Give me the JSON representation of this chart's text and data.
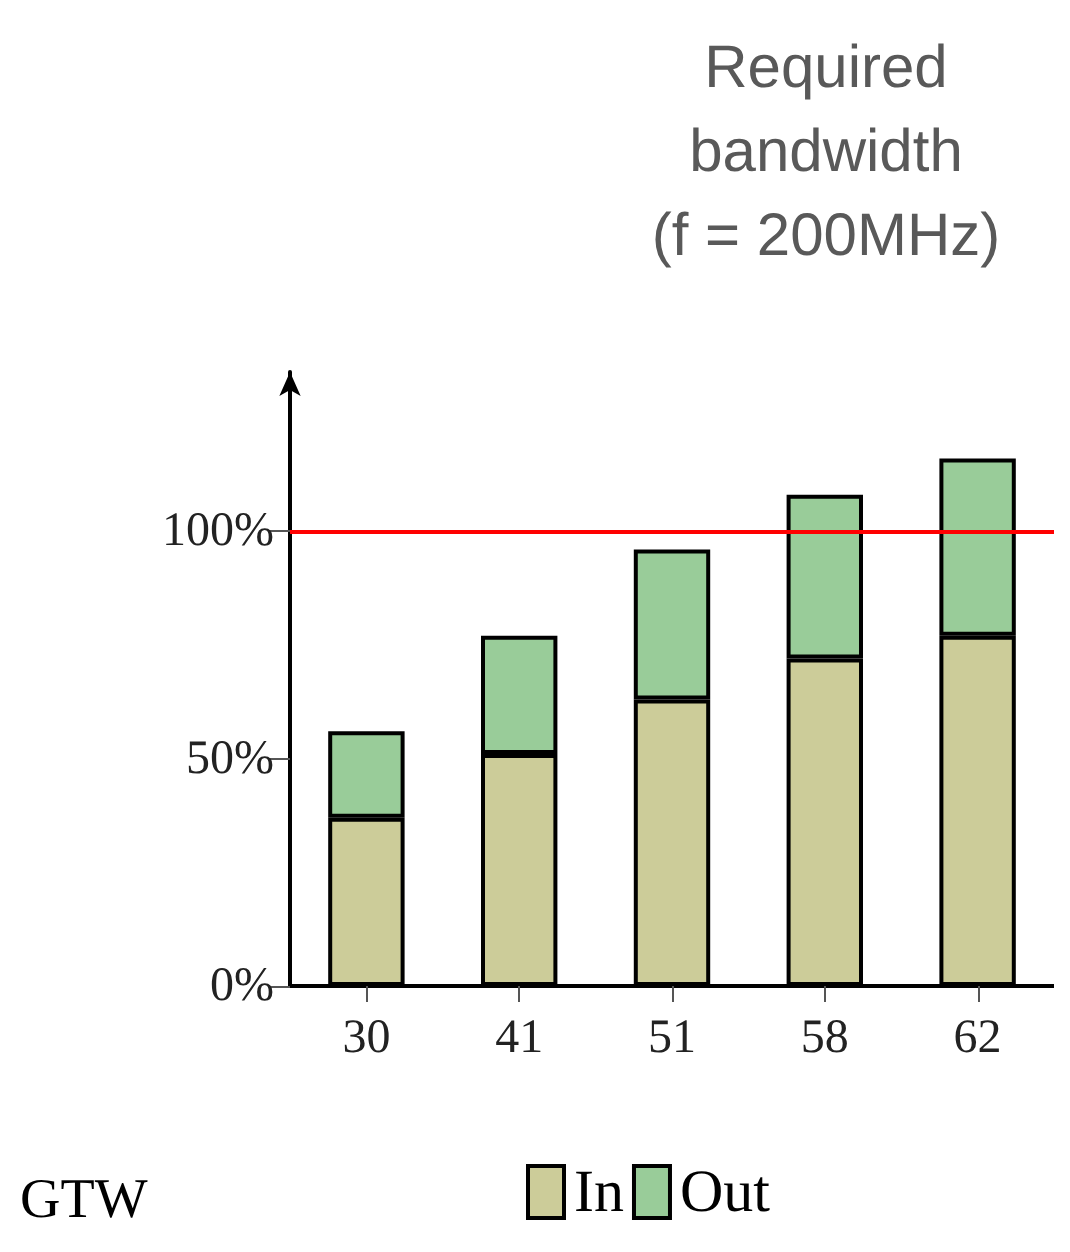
{
  "chart_data": {
    "type": "bar",
    "title": "Required\nbandwidth\n(f = 200MHz)",
    "stacked": true,
    "categories": [
      "30",
      "41",
      "51",
      "58",
      "62"
    ],
    "series": [
      {
        "name": "In",
        "color": "#cccc99",
        "values": [
          37,
          51,
          63,
          72,
          77
        ]
      },
      {
        "name": "Out",
        "color": "#99cc99",
        "values": [
          19,
          26,
          33,
          36,
          39
        ]
      }
    ],
    "ylim": [
      0,
      135
    ],
    "yticks": [
      {
        "value": 0,
        "label": "0%"
      },
      {
        "value": 50,
        "label": "50%"
      },
      {
        "value": 100,
        "label": "100%"
      }
    ],
    "ref_lines": [
      {
        "axis": "y",
        "value": 100,
        "color": "#ff0000"
      }
    ],
    "annotations": [
      "GTW"
    ],
    "legend": "bottom",
    "grid": false
  }
}
